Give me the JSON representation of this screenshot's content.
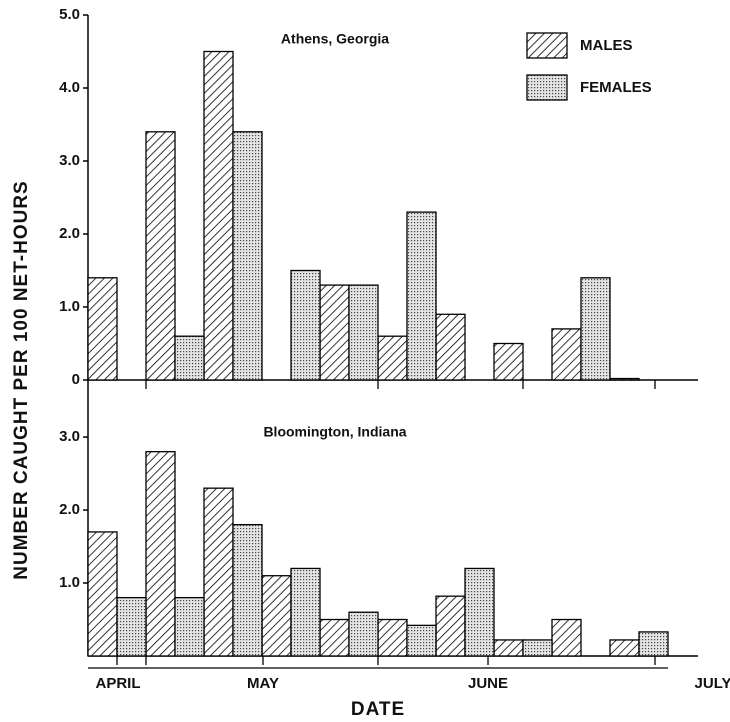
{
  "ylabel": "NUMBER CAUGHT PER 100 NET-HOURS",
  "xlabel": "DATE",
  "x_labels": [
    "APRIL",
    "MAY",
    "JUNE",
    "JULY"
  ],
  "chart_data": [
    {
      "type": "bar",
      "title": "Athens, Georgia",
      "categories": [
        null,
        null,
        null,
        null,
        null,
        null,
        null,
        null,
        null,
        null
      ],
      "series": [
        {
          "name": "MALES",
          "color": "#000000",
          "pattern": "hatch",
          "values": [
            1.4,
            3.4,
            4.5,
            null,
            1.3,
            0.6,
            0.9,
            0.5,
            0.7,
            0.02
          ]
        },
        {
          "name": "FEMALES",
          "color": "#000000",
          "pattern": "dots",
          "values": [
            null,
            0.6,
            3.4,
            1.5,
            1.3,
            2.3,
            null,
            null,
            1.4,
            null
          ]
        }
      ],
      "ylim": [
        0,
        5
      ],
      "yticks": [
        0,
        {
          "value": 1,
          "label": "1.0"
        },
        {
          "value": 2,
          "label": "2.0"
        },
        {
          "value": 3,
          "label": "3.0"
        },
        {
          "value": 4,
          "label": "4.0"
        },
        {
          "value": 5,
          "label": "5.0"
        }
      ],
      "legend": "upper right"
    },
    {
      "type": "bar",
      "title": "Bloomington, Indiana",
      "categories": [
        null,
        null,
        null,
        null,
        null,
        null,
        null,
        null,
        null,
        null
      ],
      "series": [
        {
          "name": "MALES",
          "color": "#000000",
          "pattern": "hatch",
          "values": [
            1.7,
            2.8,
            2.3,
            1.1,
            0.5,
            0.5,
            0.82,
            0.22,
            0.5,
            0.22
          ]
        },
        {
          "name": "FEMALES",
          "color": "#000000",
          "pattern": "dots",
          "values": [
            0.8,
            0.8,
            1.8,
            1.2,
            0.6,
            0.42,
            1.2,
            0.22,
            null,
            0.33
          ]
        }
      ],
      "ylim": [
        0,
        3.7
      ],
      "yticks": [
        {
          "value": 1,
          "label": "1.0"
        },
        {
          "value": 2,
          "label": "2.0"
        },
        {
          "value": 3,
          "label": "3.0"
        }
      ]
    }
  ]
}
